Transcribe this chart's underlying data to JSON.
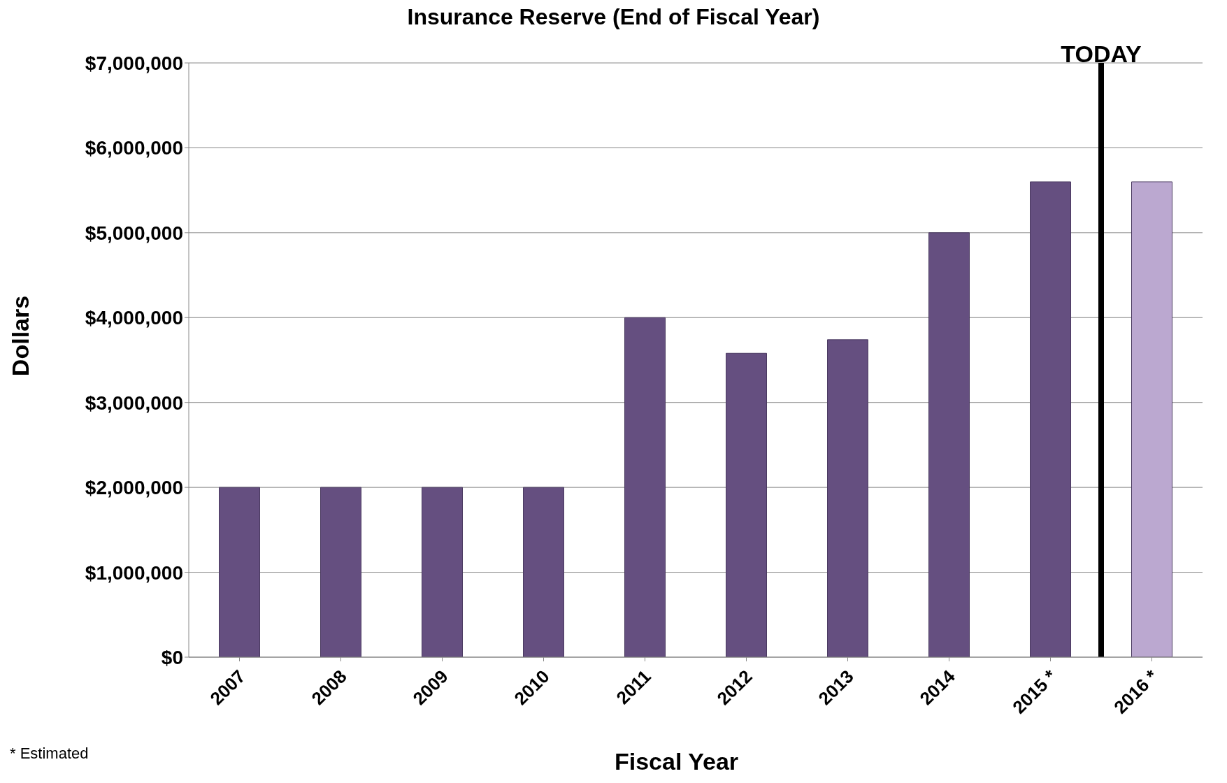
{
  "chart_data": {
    "type": "bar",
    "title": "Insurance Reserve (End of Fiscal Year)",
    "xlabel": "Fiscal Year",
    "ylabel": "Dollars",
    "categories": [
      "2007",
      "2008",
      "2009",
      "2010",
      "2011",
      "2012",
      "2013",
      "2014",
      "2015 *",
      "2016 *"
    ],
    "values": [
      2000000,
      2000000,
      2000000,
      2000000,
      4000000,
      3580000,
      3740000,
      5000000,
      5600000,
      5600000
    ],
    "colors": [
      "#654f80",
      "#654f80",
      "#654f80",
      "#654f80",
      "#654f80",
      "#654f80",
      "#654f80",
      "#654f80",
      "#654f80",
      "#bba8d0"
    ],
    "ylim": [
      0,
      7000000
    ],
    "yticks": [
      {
        "value": 0,
        "label": "$0"
      },
      {
        "value": 1000000,
        "label": "$1,000,000"
      },
      {
        "value": 2000000,
        "label": "$2,000,000"
      },
      {
        "value": 3000000,
        "label": "$3,000,000"
      },
      {
        "value": 4000000,
        "label": "$4,000,000"
      },
      {
        "value": 5000000,
        "label": "$5,000,000"
      },
      {
        "value": 6000000,
        "label": "$6,000,000"
      },
      {
        "value": 7000000,
        "label": "$7,000,000"
      }
    ],
    "grid": "y",
    "ref_lines": [
      {
        "axis": "x",
        "value": "2016 *",
        "label": "TODAY",
        "color": "#000000"
      }
    ],
    "annotations": [
      "* Estimated"
    ]
  }
}
